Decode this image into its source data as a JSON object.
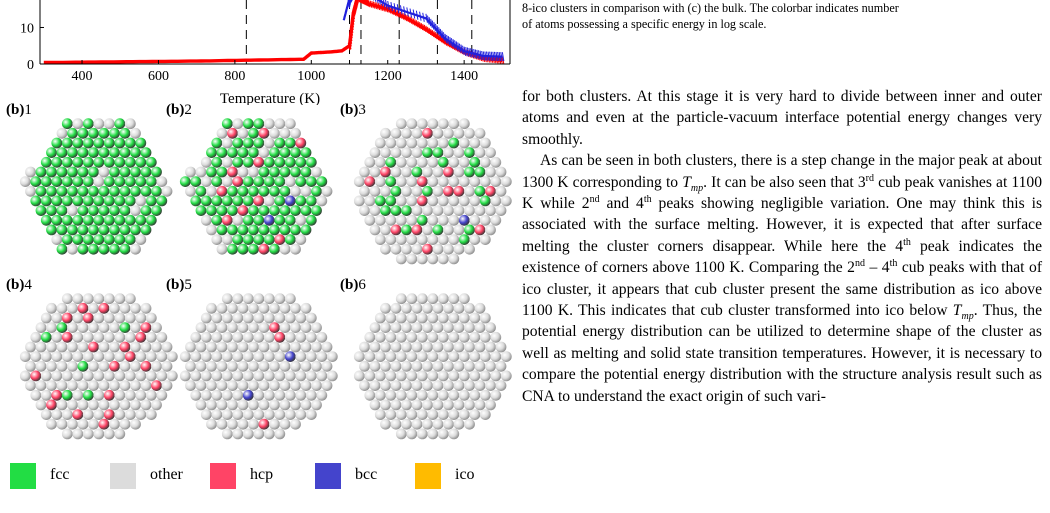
{
  "chart_data": {
    "type": "line",
    "xlabel": "Temperature (K)",
    "ylabel": "",
    "x_ticks": [
      400,
      600,
      800,
      1000,
      1200,
      1400
    ],
    "y_ticks": [
      0,
      10
    ],
    "xlim": [
      290,
      1520
    ],
    "ylim": [
      0,
      23
    ],
    "dashed_lines_x": [
      830,
      1100,
      1130,
      1230,
      1330,
      1420
    ],
    "series": [
      {
        "color": "#ff0000",
        "x": [
          300,
          700,
          980,
          1000,
          1050,
          1080,
          1100,
          1110,
          1120,
          1150,
          1200,
          1250,
          1300,
          1350,
          1400,
          1450,
          1500
        ],
        "y": [
          0.4,
          0.8,
          1.3,
          3.0,
          3.3,
          3.6,
          5.0,
          14.0,
          18.0,
          16.5,
          15.0,
          12.5,
          9.5,
          6.0,
          3.2,
          1.5,
          1.0
        ]
      },
      {
        "color": "#2020dd",
        "x": [
          1085,
          1100,
          1110,
          1130,
          1200,
          1300,
          1350,
          1400,
          1450,
          1500
        ],
        "y": [
          12.0,
          18.0,
          20.0,
          20.5,
          16.0,
          12.5,
          7.0,
          3.5,
          2.2,
          2.0
        ]
      }
    ]
  },
  "panels": [
    {
      "label_bold": "(b)",
      "label_num": "1"
    },
    {
      "label_bold": "(b)",
      "label_num": "2"
    },
    {
      "label_bold": "(b)",
      "label_num": "3"
    },
    {
      "label_bold": "(b)",
      "label_num": "4"
    },
    {
      "label_bold": "(b)",
      "label_num": "5"
    },
    {
      "label_bold": "(b)",
      "label_num": "6"
    }
  ],
  "legend": [
    {
      "label": "fcc",
      "color": "#22dd44"
    },
    {
      "label": "other",
      "color": "#dcdcdc"
    },
    {
      "label": "hcp",
      "color": "#ff4466"
    },
    {
      "label": "bcc",
      "color": "#4444cc"
    },
    {
      "label": "ico",
      "color": "#ffbb00"
    }
  ],
  "caption": {
    "line1": "8-ico clusters in comparison with (c) the bulk. The colorbar indicates number",
    "line2": "of atoms possessing a specific energy in log scale."
  },
  "body": {
    "p1": "for both clusters. At this stage it is very hard to divide between inner and outer atoms and even at the particle-vacuum interface potential energy changes very smoothly.",
    "p2_a": "As can be seen in both clusters, there is a step change in the major peak at about 1300 K corresponding to ",
    "tmp_T": "T",
    "tmp_sub": "mp",
    "p2_b": ". It can be also seen that 3",
    "rd": "rd",
    "p2_c": " cub peak vanishes at 1100 K while 2",
    "nd": "nd",
    "p2_d": " and 4",
    "th": "th",
    "p2_e": " peaks showing negligible variation. One may think this is associated with the surface melting. However, it is expected that after surface melting the cluster corners disappear. While here the 4",
    "p2_f": " peak indicates the existence of corners above 1100 K. Comparing the 2",
    "p2_g": " – 4",
    "p2_h": " cub peaks with that of ico cluster, it appears that cub cluster present the same distribution as ico above 1100 K. This indicates that cub cluster transformed into ico below ",
    "p2_i": ". Thus, the potential energy distribution can be utilized to determine shape of the cluster as well as melting and solid state transition temperatures. However, it is necessary to compare the potential energy distribution with the structure analysis result such as CNA to understand the exact origin of such vari-"
  }
}
